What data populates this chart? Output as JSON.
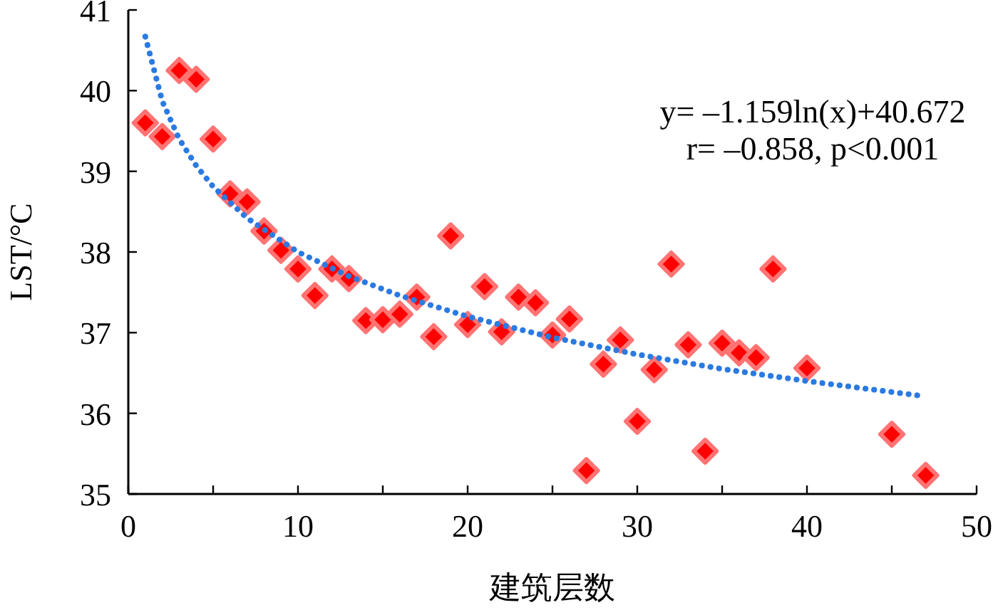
{
  "chart_data": {
    "type": "scatter",
    "xlabel": "建筑层数",
    "ylabel": "LST/°C",
    "xlim": [
      0,
      50
    ],
    "ylim": [
      35,
      41
    ],
    "xticks": [
      0,
      {
        "value": 5,
        "label": null
      },
      10,
      {
        "value": 15,
        "label": null
      },
      20,
      {
        "value": 25,
        "label": null
      },
      30,
      {
        "value": 35,
        "label": null
      },
      40,
      {
        "value": 45,
        "label": null
      },
      50
    ],
    "yticks": [
      35,
      36,
      37,
      38,
      39,
      40,
      41
    ],
    "grid": false,
    "annotations": [
      "y= –1.159ln(x)+40.672",
      "r= –0.858, p<0.001"
    ],
    "series": [
      {
        "type": "scatter",
        "color": "#ff0000",
        "marker": "diamond",
        "x": [
          1,
          2,
          3,
          4,
          5,
          6,
          7,
          8,
          9,
          10,
          11,
          12,
          13,
          14,
          15,
          16,
          17,
          18,
          19,
          20,
          21,
          22,
          23,
          24,
          25,
          26,
          27,
          28,
          29,
          30,
          31,
          32,
          33,
          34,
          35,
          36,
          37,
          38,
          40,
          45,
          47
        ],
        "values": [
          39.6,
          39.43,
          40.25,
          40.14,
          39.4,
          38.72,
          38.62,
          38.26,
          38.02,
          37.79,
          37.46,
          37.79,
          37.67,
          37.15,
          37.16,
          37.23,
          37.44,
          36.95,
          38.2,
          37.1,
          37.57,
          37.01,
          37.44,
          37.37,
          36.97,
          37.17,
          35.29,
          36.61,
          36.91,
          35.9,
          36.54,
          37.85,
          36.85,
          35.53,
          36.87,
          36.75,
          36.69,
          37.79,
          36.56,
          35.74,
          35.23
        ]
      },
      {
        "type": "line",
        "color": "#2a7ae2",
        "line_style": "dotted",
        "x": [
          1,
          2,
          3,
          4,
          5,
          7,
          10,
          13,
          16,
          20,
          25,
          30,
          35,
          40,
          47
        ],
        "values": [
          40.67,
          39.87,
          39.4,
          39.07,
          38.81,
          38.42,
          38.0,
          37.7,
          37.46,
          37.2,
          36.94,
          36.73,
          36.55,
          36.4,
          36.21
        ]
      }
    ]
  }
}
